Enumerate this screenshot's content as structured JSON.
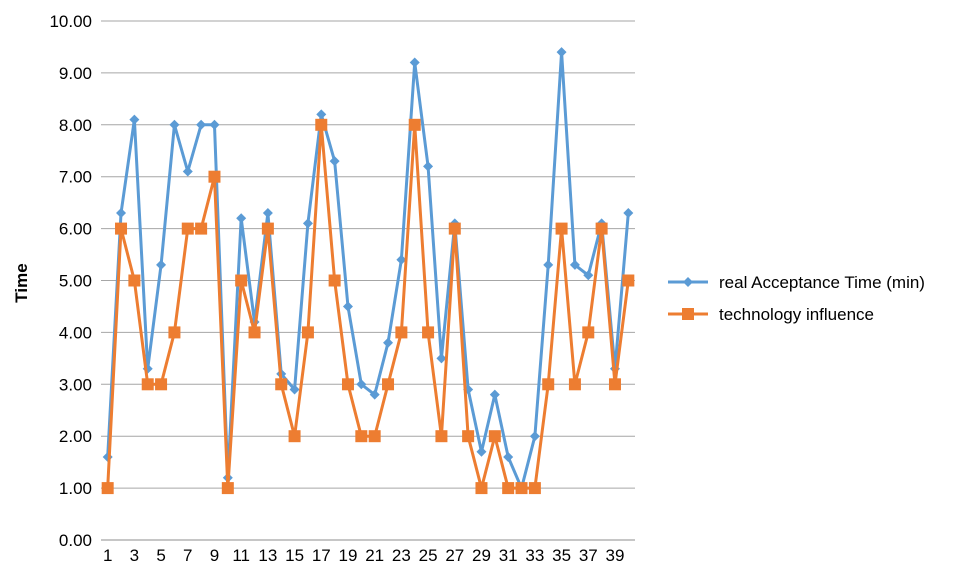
{
  "chart_data": {
    "type": "line",
    "title": "",
    "xlabel": "",
    "ylabel": "Time",
    "ylim": [
      0,
      10
    ],
    "y_ticks": [
      "0.00",
      "1.00",
      "2.00",
      "3.00",
      "4.00",
      "5.00",
      "6.00",
      "7.00",
      "8.00",
      "9.00",
      "10.00"
    ],
    "x": [
      1,
      2,
      3,
      4,
      5,
      6,
      7,
      8,
      9,
      10,
      11,
      12,
      13,
      14,
      15,
      16,
      17,
      18,
      19,
      20,
      21,
      22,
      23,
      24,
      25,
      26,
      27,
      28,
      29,
      30,
      31,
      32,
      33,
      34,
      35,
      36,
      37,
      38,
      39,
      40
    ],
    "x_tick_labels": [
      "1",
      "3",
      "5",
      "7",
      "9",
      "11",
      "13",
      "15",
      "17",
      "19",
      "21",
      "23",
      "25",
      "27",
      "29",
      "31",
      "33",
      "35",
      "37",
      "39"
    ],
    "grid": true,
    "legend_position": "right",
    "series": [
      {
        "name": "real Acceptance Time (min)",
        "color": "#5b9bd5",
        "marker": "diamond",
        "values": [
          1.6,
          6.3,
          8.1,
          3.3,
          5.3,
          8.0,
          7.1,
          8.0,
          8.0,
          1.2,
          6.2,
          4.2,
          6.3,
          3.2,
          2.9,
          6.1,
          8.2,
          7.3,
          4.5,
          3.0,
          2.8,
          3.8,
          5.4,
          9.2,
          7.2,
          3.5,
          6.1,
          2.9,
          1.7,
          2.8,
          1.6,
          1.0,
          2.0,
          5.3,
          9.4,
          5.3,
          5.1,
          6.1,
          3.3,
          6.3
        ]
      },
      {
        "name": "technology influence",
        "color": "#ed7d31",
        "marker": "square",
        "values": [
          1,
          6,
          5,
          3,
          3,
          4,
          6,
          6,
          7,
          1,
          5,
          4,
          6,
          3,
          2,
          4,
          8,
          5,
          3,
          2,
          2,
          3,
          4,
          8,
          4,
          2,
          6,
          2,
          1,
          2,
          1,
          1,
          1,
          3,
          6,
          3,
          4,
          6,
          3,
          5
        ]
      }
    ]
  }
}
